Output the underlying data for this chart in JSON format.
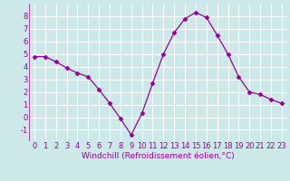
{
  "x": [
    0,
    1,
    2,
    3,
    4,
    5,
    6,
    7,
    8,
    9,
    10,
    11,
    12,
    13,
    14,
    15,
    16,
    17,
    18,
    19,
    20,
    21,
    22,
    23
  ],
  "y": [
    4.8,
    4.8,
    4.4,
    3.9,
    3.5,
    3.2,
    2.2,
    1.1,
    -0.1,
    -1.4,
    0.3,
    2.7,
    5.0,
    6.7,
    7.8,
    8.3,
    7.9,
    6.5,
    5.0,
    3.2,
    2.0,
    1.8,
    1.4,
    1.1
  ],
  "line_color": "#990099",
  "marker": "D",
  "marker_size": 2.5,
  "bg_color": "#cce8e8",
  "grid_color": "#ffffff",
  "xlabel": "Windchill (Refroidissement éolien,°C)",
  "tick_color": "#990099",
  "ylim": [
    -1.9,
    9.0
  ],
  "xlim": [
    -0.5,
    23.5
  ],
  "yticks": [
    -1,
    0,
    1,
    2,
    3,
    4,
    5,
    6,
    7,
    8
  ],
  "xticks": [
    0,
    1,
    2,
    3,
    4,
    5,
    6,
    7,
    8,
    9,
    10,
    11,
    12,
    13,
    14,
    15,
    16,
    17,
    18,
    19,
    20,
    21,
    22,
    23
  ],
  "xlabel_fontsize": 6.5,
  "tick_fontsize": 6.0
}
